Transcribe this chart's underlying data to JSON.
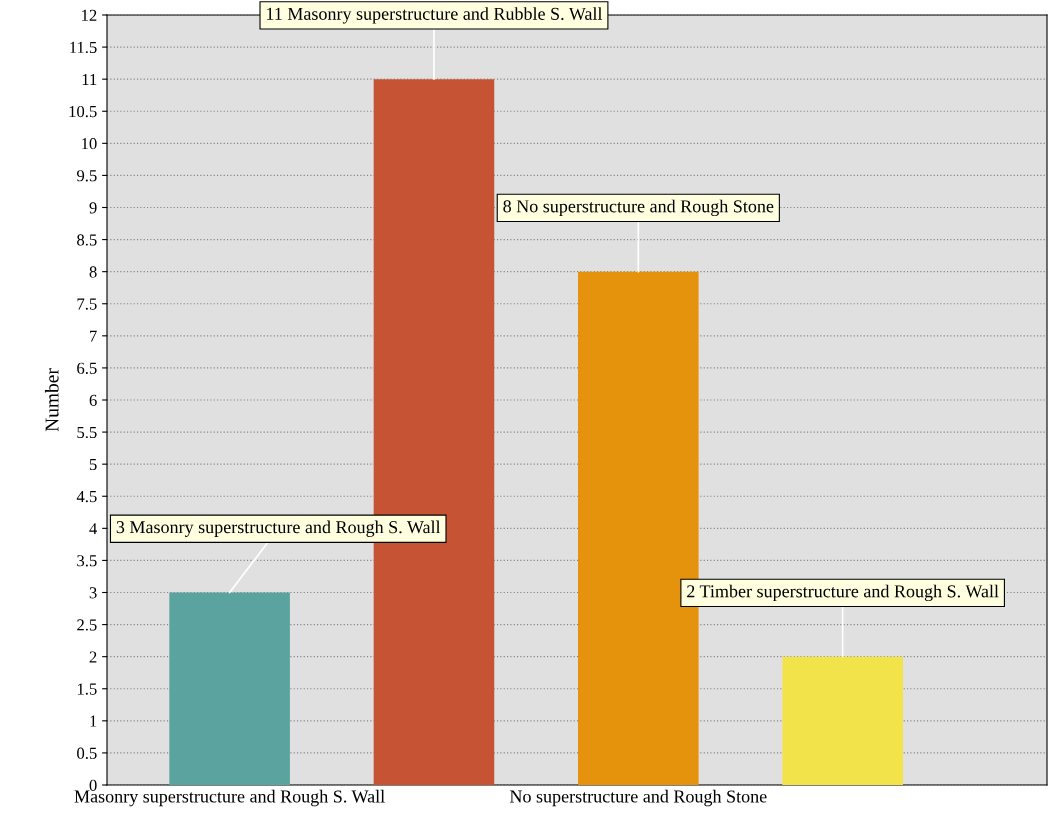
{
  "chart_data": {
    "type": "bar",
    "ylabel": "Number",
    "categories": [
      "Masonry superstructure and Rough S. Wall",
      null,
      "No superstructure and Rough Stone",
      null
    ],
    "values": [
      3,
      11,
      8,
      2
    ],
    "colors": [
      "#5ba39f",
      "#c65434",
      "#e5920c",
      "#f2e34a"
    ],
    "value_labels": [
      "3 Masonry superstructure and Rough S. Wall",
      "11 Masonry superstructure and Rubble S. Wall",
      "8 No superstructure and Rough Stone",
      "2 Timber superstructure and Rough S. Wall"
    ],
    "ylim": [
      0,
      12
    ],
    "yticks": [
      0,
      0.5,
      1,
      1.5,
      2,
      2.5,
      3,
      3.5,
      4,
      4.5,
      5,
      5.5,
      6,
      6.5,
      7,
      7.5,
      8,
      8.5,
      9,
      9.5,
      10,
      10.5,
      11,
      11.5,
      12
    ],
    "grid": "y"
  }
}
